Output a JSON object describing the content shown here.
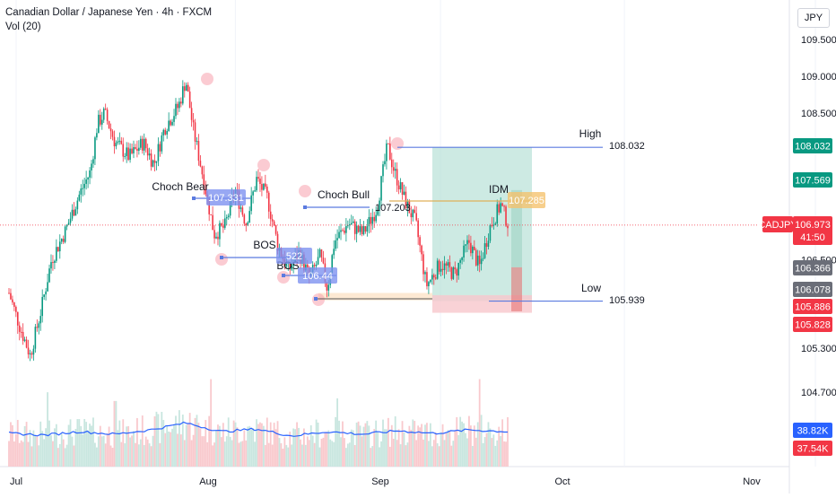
{
  "header": {
    "title": "Canadian Dollar / Japanese Yen · 4h · FXCM",
    "volume_label": "Vol (20)",
    "currency": "JPY"
  },
  "chart_data": {
    "type": "candlestick",
    "symbol": "CADJPY",
    "timeframe": "4h",
    "y_ticks": [
      "109.500",
      "109.000",
      "108.500",
      "106.500",
      "105.300",
      "104.700"
    ],
    "x_ticks": [
      "Jul",
      "Aug",
      "Sep",
      "Oct",
      "Nov"
    ],
    "ylim": [
      104.55,
      109.65
    ],
    "price_path": [
      [
        0,
        106.05
      ],
      [
        1.5,
        105.6
      ],
      [
        3,
        105.2
      ],
      [
        4.5,
        105.8
      ],
      [
        6,
        106.5
      ],
      [
        8,
        106.9
      ],
      [
        10,
        107.4
      ],
      [
        11.5,
        107.7
      ],
      [
        12.5,
        108.35
      ],
      [
        13.5,
        108.5
      ],
      [
        15,
        108.1
      ],
      [
        17,
        107.9
      ],
      [
        19,
        108.1
      ],
      [
        20.5,
        107.8
      ],
      [
        22,
        108.3
      ],
      [
        24,
        108.6
      ],
      [
        25,
        108.95
      ],
      [
        26,
        108.3
      ],
      [
        27.5,
        107.6
      ],
      [
        29,
        106.85
      ],
      [
        30.5,
        106.95
      ],
      [
        32,
        107.45
      ],
      [
        33.5,
        107.0
      ],
      [
        35,
        107.6
      ],
      [
        36.5,
        107.35
      ],
      [
        38,
        106.7
      ],
      [
        39.5,
        106.35
      ],
      [
        41,
        106.6
      ],
      [
        42.5,
        106.25
      ],
      [
        44,
        106.55
      ],
      [
        45,
        106.1
      ],
      [
        46,
        106.75
      ],
      [
        48,
        107.0
      ],
      [
        50,
        106.85
      ],
      [
        52,
        107.2
      ],
      [
        53.5,
        108.05
      ],
      [
        54.5,
        107.7
      ],
      [
        56,
        107.3
      ],
      [
        57.5,
        107.0
      ],
      [
        59,
        106.15
      ],
      [
        61,
        106.45
      ],
      [
        63,
        106.3
      ],
      [
        65,
        106.75
      ],
      [
        66.5,
        106.4
      ],
      [
        68,
        106.95
      ],
      [
        69.5,
        107.25
      ],
      [
        70.5,
        107.0
      ]
    ],
    "volume_ma": [
      [
        0,
        0.38
      ],
      [
        5,
        0.36
      ],
      [
        10,
        0.4
      ],
      [
        15,
        0.37
      ],
      [
        20,
        0.42
      ],
      [
        25,
        0.5
      ],
      [
        30,
        0.4
      ],
      [
        35,
        0.43
      ],
      [
        40,
        0.35
      ],
      [
        45,
        0.4
      ],
      [
        50,
        0.37
      ],
      [
        55,
        0.41
      ],
      [
        60,
        0.38
      ],
      [
        65,
        0.42
      ],
      [
        70.5,
        0.4
      ]
    ],
    "volume_spikes": [
      [
        5.5,
        0.85
      ],
      [
        15,
        0.75
      ],
      [
        28.5,
        1.0
      ],
      [
        46.5,
        0.78
      ],
      [
        66.5,
        1.0
      ]
    ],
    "levels": {
      "high": {
        "label": "High",
        "value": "108.032"
      },
      "low": {
        "label": "Low",
        "value": "105.939"
      },
      "choch_bull_value": "107.203"
    },
    "annotations": {
      "choch_bear": "Choch Bear",
      "choch_bull": "Choch Bull",
      "bos_1": "BOS",
      "bos_2": "BOS",
      "idm": "IDM",
      "tag_choch_bear": "107.331",
      "tag_bos_1": "522",
      "tag_bos_2": "106.44",
      "tag_idm": "107.285"
    },
    "price_badges": {
      "high": "108.032",
      "target": "107.569",
      "symbol": "CADJPY",
      "last": "106.973",
      "countdown": "41:50",
      "gray_1": "106.366",
      "gray_2": "106.078",
      "red_1": "105.886",
      "red_2": "105.828",
      "vol_1": "38.82K",
      "vol_2": "37.54K"
    },
    "colors": {
      "up": "#089981",
      "down": "#f23645",
      "level_line": "#5b7be0",
      "target_zone": "#b2dfd4",
      "stop_zone": "#f7c7cc",
      "volume_ma": "#2962ff"
    }
  }
}
